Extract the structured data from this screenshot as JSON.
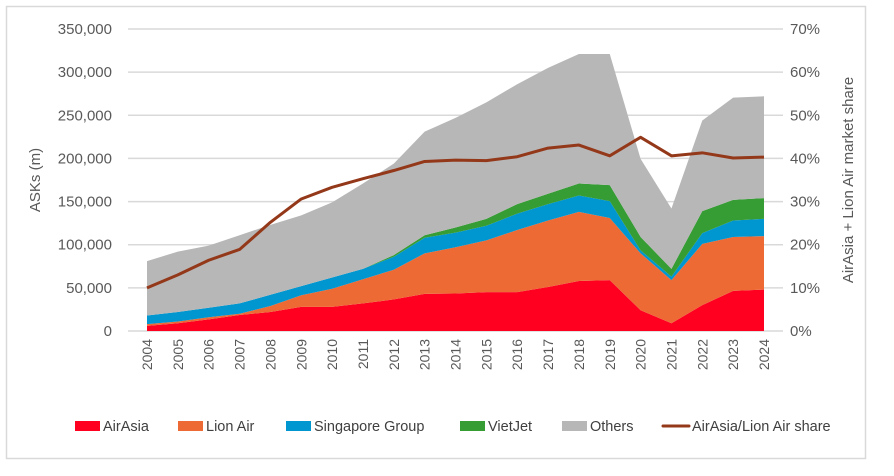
{
  "chart_data": {
    "type": "area",
    "stacked": true,
    "xlabel": "",
    "ylabel": "ASKs (m)",
    "y2label": "AirAsia + Lion Air market share",
    "ylim": [
      0,
      350000
    ],
    "y2lim": [
      0,
      0.7
    ],
    "yticks": [
      "0",
      "50,000",
      "100,000",
      "150,000",
      "200,000",
      "250,000",
      "300,000",
      "350,000"
    ],
    "y2ticks": [
      "0%",
      "10%",
      "20%",
      "30%",
      "40%",
      "50%",
      "60%",
      "70%"
    ],
    "grid": true,
    "legend_position": "bottom",
    "categories": [
      "2004",
      "2005",
      "2006",
      "2007",
      "2008",
      "2009",
      "2010",
      "2011",
      "2012",
      "2013",
      "2014",
      "2015",
      "2016",
      "2017",
      "2018",
      "2019",
      "2020",
      "2021",
      "2022",
      "2023",
      "2024"
    ],
    "series": [
      {
        "name": "AirAsia",
        "color": "#ff0021",
        "values": [
          6000,
          9000,
          13500,
          18500,
          22000,
          28000,
          28000,
          32000,
          36600,
          43000,
          43500,
          45000,
          45000,
          51000,
          58000,
          59000,
          24000,
          9000,
          30000,
          46500,
          48000
        ]
      },
      {
        "name": "Lion Air",
        "color": "#ee6a35",
        "values": [
          2000,
          2000,
          2500,
          1500,
          7000,
          13500,
          21000,
          28000,
          34400,
          47000,
          53500,
          60000,
          72000,
          77000,
          80000,
          72000,
          66000,
          50000,
          71000,
          62500,
          62000
        ]
      },
      {
        "name": "Singapore Group",
        "color": "#0096cf",
        "values": [
          10000,
          11000,
          11000,
          12000,
          13000,
          10500,
          13000,
          12000,
          15000,
          18000,
          17000,
          17000,
          19000,
          19000,
          19000,
          19500,
          3500,
          4000,
          12500,
          19000,
          20000
        ]
      },
      {
        "name": "VietJet",
        "color": "#369c34",
        "values": [
          0,
          0,
          0,
          0,
          0,
          0,
          0,
          0,
          2000,
          3000,
          6000,
          8000,
          11000,
          12000,
          14000,
          18500,
          15500,
          9000,
          25500,
          24000,
          24000
        ]
      },
      {
        "name": "Others",
        "color": "#b7b7b7",
        "values": [
          63000,
          70000,
          72000,
          79000,
          81000,
          82000,
          87000,
          99000,
          106000,
          120000,
          127000,
          135000,
          139000,
          146000,
          150000,
          152000,
          90500,
          70000,
          105000,
          118500,
          118000
        ]
      }
    ],
    "line_series": {
      "name": "AirAsia/Lion Air share",
      "color": "#94381a",
      "axis": "right",
      "values": [
        0.1,
        0.13,
        0.164,
        0.189,
        0.252,
        0.306,
        0.333,
        0.353,
        0.372,
        0.393,
        0.396,
        0.395,
        0.404,
        0.424,
        0.431,
        0.406,
        0.449,
        0.406,
        0.413,
        0.401,
        0.403
      ]
    }
  }
}
